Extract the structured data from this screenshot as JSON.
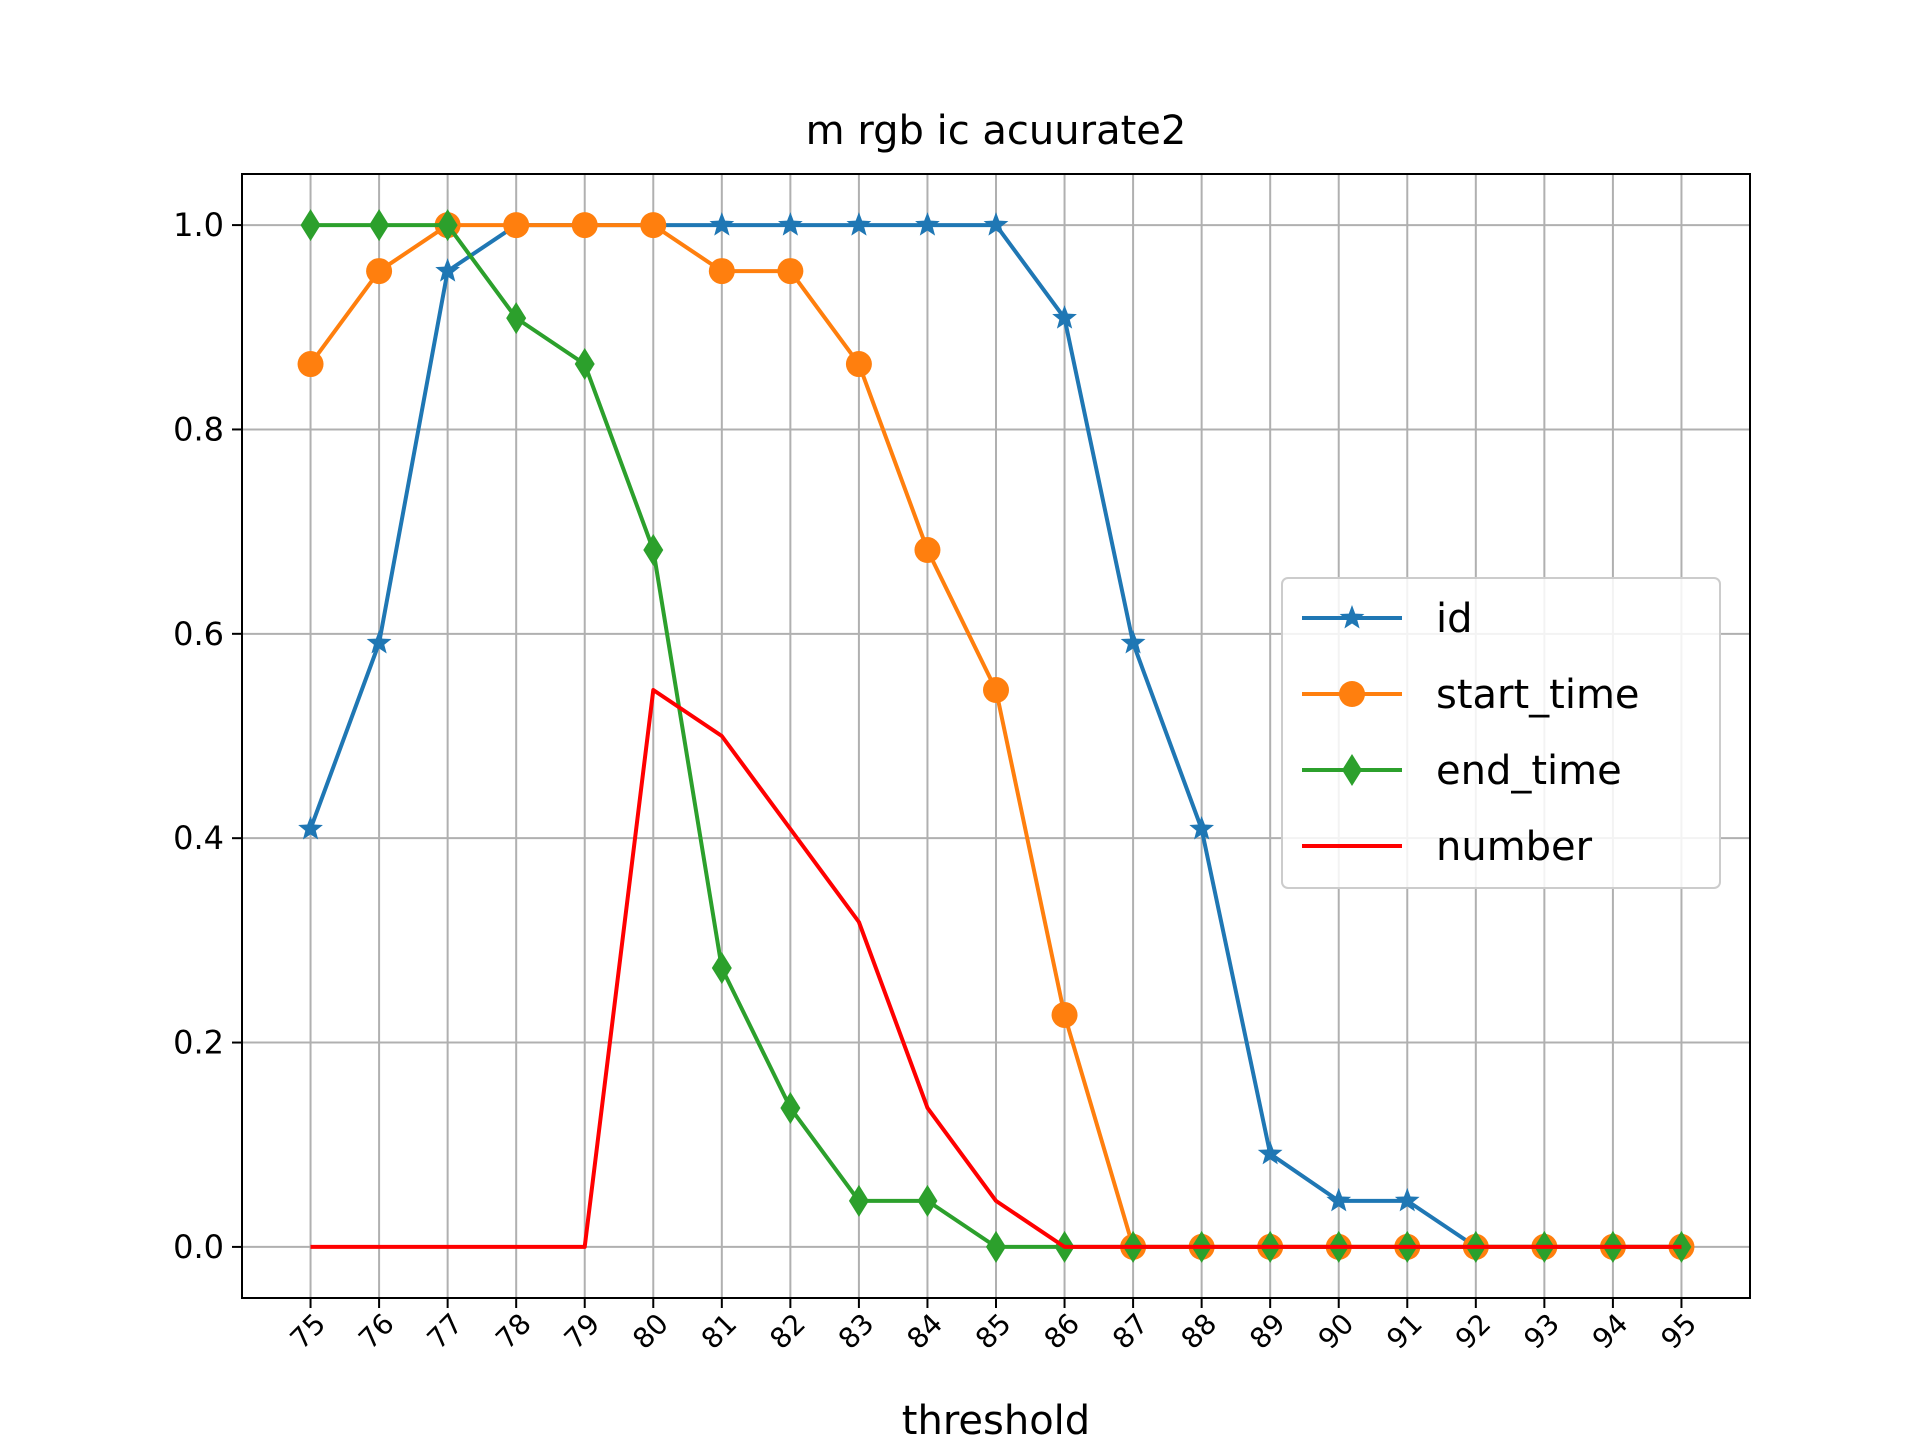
{
  "chart_data": {
    "type": "line",
    "title": "m rgb ic acuurate2",
    "xlabel": "threshold",
    "ylabel": "",
    "x": [
      75,
      76,
      77,
      78,
      79,
      80,
      81,
      82,
      83,
      84,
      85,
      86,
      87,
      88,
      89,
      90,
      91,
      92,
      93,
      94,
      95
    ],
    "x_tick_labels": [
      "75",
      "76",
      "77",
      "78",
      "79",
      "80",
      "81",
      "82",
      "83",
      "84",
      "85",
      "86",
      "87",
      "88",
      "89",
      "90",
      "91",
      "92",
      "93",
      "94",
      "95"
    ],
    "y_ticks": [
      0.0,
      0.2,
      0.4,
      0.6,
      0.8,
      1.0
    ],
    "y_tick_labels": [
      "0.0",
      "0.2",
      "0.4",
      "0.6",
      "0.8",
      "1.0"
    ],
    "xlim": [
      74,
      96
    ],
    "ylim": [
      -0.05,
      1.05
    ],
    "grid": true,
    "legend_position": "center-right",
    "series": [
      {
        "name": "id",
        "color": "#1f77b4",
        "marker": "star",
        "values": [
          0.409,
          0.591,
          0.955,
          1.0,
          1.0,
          1.0,
          1.0,
          1.0,
          1.0,
          1.0,
          1.0,
          0.909,
          0.591,
          0.409,
          0.091,
          0.045,
          0.045,
          0.0,
          0.0,
          0.0,
          0.0
        ]
      },
      {
        "name": "start_time",
        "color": "#ff7f0e",
        "marker": "circle",
        "values": [
          0.864,
          0.955,
          1.0,
          1.0,
          1.0,
          1.0,
          0.955,
          0.955,
          0.864,
          0.682,
          0.545,
          0.227,
          0.0,
          0.0,
          0.0,
          0.0,
          0.0,
          0.0,
          0.0,
          0.0,
          0.0
        ]
      },
      {
        "name": "end_time",
        "color": "#2ca02c",
        "marker": "diamond",
        "values": [
          1.0,
          1.0,
          1.0,
          0.909,
          0.864,
          0.682,
          0.273,
          0.136,
          0.045,
          0.045,
          0.0,
          0.0,
          0.0,
          0.0,
          0.0,
          0.0,
          0.0,
          0.0,
          0.0,
          0.0,
          0.0
        ]
      },
      {
        "name": "number",
        "color": "#ff0000",
        "marker": "none",
        "values": [
          0.0,
          0.0,
          0.0,
          0.0,
          0.0,
          0.545,
          0.5,
          0.409,
          0.318,
          0.136,
          0.045,
          0.0,
          0.0,
          0.0,
          0.0,
          0.0,
          0.0,
          0.0,
          0.0,
          0.0,
          0.0
        ]
      }
    ]
  }
}
